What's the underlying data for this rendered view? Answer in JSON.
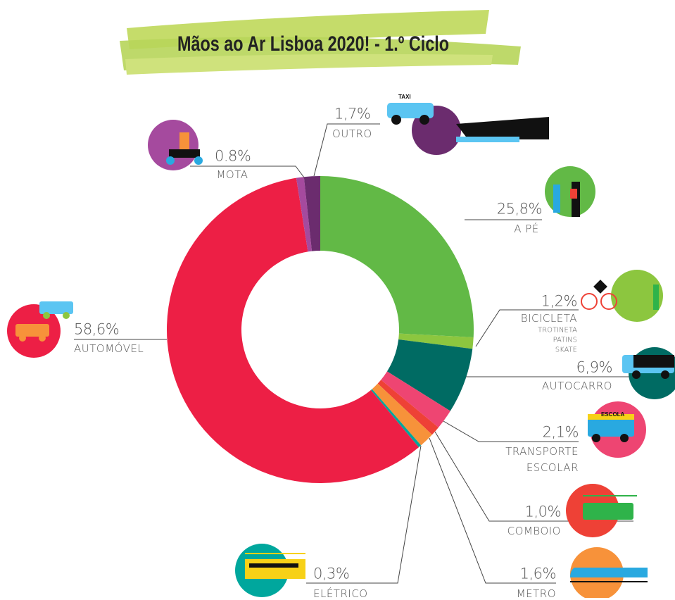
{
  "chart_data": {
    "type": "donut",
    "title": "Mãos ao Ar Lisboa 2020! - 1.º Ciclo",
    "categories": [
      "A PÉ",
      "BICICLETA",
      "AUTOCARRO",
      "TRANSPORTE ESCOLAR",
      "COMBOIO",
      "METRO",
      "ELÉTRICO",
      "AUTOMÓVEL",
      "MOTA",
      "OUTRO"
    ],
    "values": [
      25.8,
      1.2,
      6.9,
      2.1,
      1.0,
      1.6,
      0.3,
      58.6,
      0.8,
      1.7
    ],
    "value_labels": [
      "25,8%",
      "1,2%",
      "6,9%",
      "2,1%",
      "1,0%",
      "1,6%",
      "0,3%",
      "58,6%",
      "0.8%",
      "1,7%"
    ],
    "colors": [
      "#62b946",
      "#8cc63f",
      "#006b63",
      "#ee4572",
      "#ee4136",
      "#f7923a",
      "#00a79d",
      "#ed1f45",
      "#a54a9e",
      "#6b2c6e"
    ],
    "sub_labels": [
      "TROTINETA",
      "PATINS",
      "SKATE"
    ],
    "icon_labels": [
      "TAXI",
      "ESCOLA"
    ]
  }
}
